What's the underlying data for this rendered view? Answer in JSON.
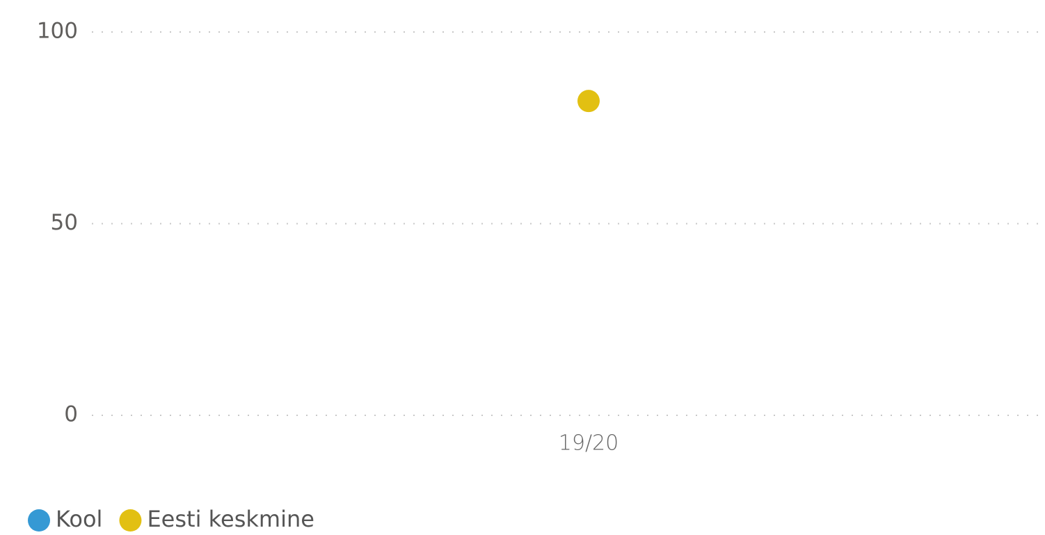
{
  "chart_data": {
    "type": "line",
    "categories": [
      "19/20"
    ],
    "series": [
      {
        "name": "Kool",
        "color": "#3599d4",
        "values": [
          null
        ]
      },
      {
        "name": "Eesti keskmine",
        "color": "#e2c012",
        "values": [
          82
        ]
      }
    ],
    "ylim": [
      0,
      100
    ],
    "yticks": [
      0,
      50,
      100
    ],
    "grid": true,
    "legend": "bottom-left"
  }
}
